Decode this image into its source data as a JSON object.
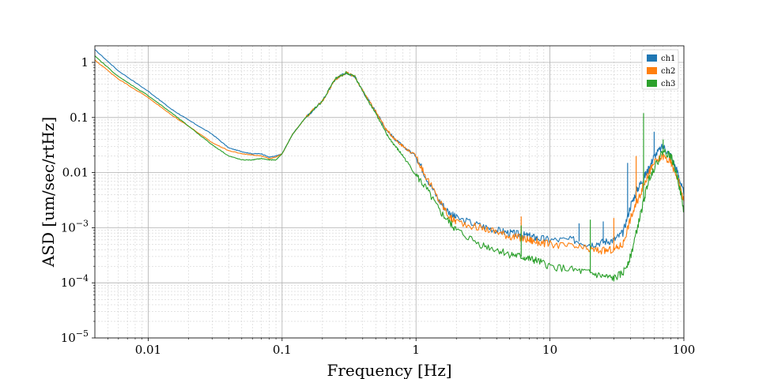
{
  "chart_data": {
    "type": "line",
    "title": "",
    "xlabel": "Frequency [Hz]",
    "ylabel": "ASD [um/sec/rtHz]",
    "xscale": "log",
    "yscale": "log",
    "xlim": [
      0.004,
      100
    ],
    "ylim": [
      1e-05,
      2
    ],
    "grid": true,
    "legend_position": "top-right",
    "x_ticks": [
      {
        "value": 0.01,
        "label": "0.01"
      },
      {
        "value": 0.1,
        "label": "0.1"
      },
      {
        "value": 1,
        "label": "1"
      },
      {
        "value": 10,
        "label": "10"
      },
      {
        "value": 100,
        "label": "100"
      }
    ],
    "y_ticks": [
      {
        "value": 1,
        "mant": "1",
        "exp": ""
      },
      {
        "value": 0.1,
        "mant": "0.1",
        "exp": ""
      },
      {
        "value": 0.01,
        "mant": "0.01",
        "exp": ""
      },
      {
        "value": 0.001,
        "mant": "10",
        "exp": "−3"
      },
      {
        "value": 0.0001,
        "mant": "10",
        "exp": "−4"
      },
      {
        "value": 1e-05,
        "mant": "10",
        "exp": "−5"
      }
    ],
    "series": [
      {
        "name": "ch1",
        "color": "#1f77b4",
        "points": [
          [
            0.004,
            1.7
          ],
          [
            0.006,
            0.7
          ],
          [
            0.01,
            0.3
          ],
          [
            0.015,
            0.14
          ],
          [
            0.02,
            0.09
          ],
          [
            0.03,
            0.05
          ],
          [
            0.04,
            0.028
          ],
          [
            0.05,
            0.024
          ],
          [
            0.06,
            0.022
          ],
          [
            0.07,
            0.022
          ],
          [
            0.08,
            0.019
          ],
          [
            0.09,
            0.02
          ],
          [
            0.1,
            0.022
          ],
          [
            0.12,
            0.05
          ],
          [
            0.15,
            0.1
          ],
          [
            0.2,
            0.2
          ],
          [
            0.25,
            0.5
          ],
          [
            0.3,
            0.65
          ],
          [
            0.35,
            0.55
          ],
          [
            0.4,
            0.3
          ],
          [
            0.5,
            0.13
          ],
          [
            0.6,
            0.06
          ],
          [
            0.7,
            0.04
          ],
          [
            0.8,
            0.03
          ],
          [
            1,
            0.02
          ],
          [
            1.2,
            0.008
          ],
          [
            1.5,
            0.003
          ],
          [
            1.8,
            0.0018
          ],
          [
            2,
            0.0015
          ],
          [
            3,
            0.0011
          ],
          [
            4,
            0.0009
          ],
          [
            5,
            0.0008
          ],
          [
            6,
            0.00075
          ],
          [
            7,
            0.0007
          ],
          [
            8,
            0.00065
          ],
          [
            10,
            0.0006
          ],
          [
            15,
            0.0006
          ],
          [
            20,
            0.0005
          ],
          [
            25,
            0.00055
          ],
          [
            30,
            0.0006
          ],
          [
            35,
            0.0008
          ],
          [
            40,
            0.0025
          ],
          [
            45,
            0.005
          ],
          [
            50,
            0.008
          ],
          [
            55,
            0.012
          ],
          [
            60,
            0.02
          ],
          [
            70,
            0.03
          ],
          [
            80,
            0.02
          ],
          [
            90,
            0.01
          ],
          [
            100,
            0.004
          ]
        ]
      },
      {
        "name": "ch2",
        "color": "#ff7f0e",
        "points": [
          [
            0.004,
            1.1
          ],
          [
            0.006,
            0.5
          ],
          [
            0.01,
            0.23
          ],
          [
            0.015,
            0.11
          ],
          [
            0.02,
            0.07
          ],
          [
            0.03,
            0.035
          ],
          [
            0.04,
            0.025
          ],
          [
            0.05,
            0.022
          ],
          [
            0.06,
            0.021
          ],
          [
            0.07,
            0.02
          ],
          [
            0.08,
            0.018
          ],
          [
            0.09,
            0.019
          ],
          [
            0.1,
            0.022
          ],
          [
            0.12,
            0.05
          ],
          [
            0.15,
            0.1
          ],
          [
            0.2,
            0.2
          ],
          [
            0.25,
            0.5
          ],
          [
            0.3,
            0.65
          ],
          [
            0.35,
            0.55
          ],
          [
            0.4,
            0.3
          ],
          [
            0.5,
            0.13
          ],
          [
            0.6,
            0.06
          ],
          [
            0.7,
            0.04
          ],
          [
            0.8,
            0.03
          ],
          [
            1,
            0.02
          ],
          [
            1.2,
            0.008
          ],
          [
            1.5,
            0.003
          ],
          [
            1.8,
            0.0015
          ],
          [
            2,
            0.0013
          ],
          [
            3,
            0.001
          ],
          [
            4,
            0.00085
          ],
          [
            5,
            0.0007
          ],
          [
            6,
            0.00065
          ],
          [
            7,
            0.0006
          ],
          [
            8,
            0.00055
          ],
          [
            10,
            0.0005
          ],
          [
            15,
            0.00045
          ],
          [
            20,
            0.0004
          ],
          [
            25,
            0.00038
          ],
          [
            30,
            0.0004
          ],
          [
            35,
            0.0005
          ],
          [
            40,
            0.0015
          ],
          [
            45,
            0.003
          ],
          [
            50,
            0.006
          ],
          [
            55,
            0.01
          ],
          [
            60,
            0.015
          ],
          [
            70,
            0.02
          ],
          [
            80,
            0.015
          ],
          [
            90,
            0.008
          ],
          [
            100,
            0.003
          ]
        ]
      },
      {
        "name": "ch3",
        "color": "#2ca02c",
        "points": [
          [
            0.004,
            1.3
          ],
          [
            0.006,
            0.55
          ],
          [
            0.01,
            0.25
          ],
          [
            0.015,
            0.12
          ],
          [
            0.02,
            0.07
          ],
          [
            0.03,
            0.032
          ],
          [
            0.04,
            0.02
          ],
          [
            0.05,
            0.017
          ],
          [
            0.06,
            0.017
          ],
          [
            0.07,
            0.018
          ],
          [
            0.08,
            0.017
          ],
          [
            0.09,
            0.017
          ],
          [
            0.1,
            0.022
          ],
          [
            0.12,
            0.05
          ],
          [
            0.15,
            0.1
          ],
          [
            0.2,
            0.2
          ],
          [
            0.25,
            0.5
          ],
          [
            0.3,
            0.65
          ],
          [
            0.35,
            0.55
          ],
          [
            0.4,
            0.3
          ],
          [
            0.5,
            0.12
          ],
          [
            0.6,
            0.05
          ],
          [
            0.7,
            0.03
          ],
          [
            0.8,
            0.02
          ],
          [
            1,
            0.009
          ],
          [
            1.2,
            0.005
          ],
          [
            1.5,
            0.002
          ],
          [
            1.8,
            0.0012
          ],
          [
            2,
            0.0009
          ],
          [
            3,
            0.0005
          ],
          [
            4,
            0.0004
          ],
          [
            5,
            0.00033
          ],
          [
            6,
            0.0003
          ],
          [
            7,
            0.00027
          ],
          [
            8,
            0.00025
          ],
          [
            10,
            0.0002
          ],
          [
            15,
            0.00017
          ],
          [
            20,
            0.00015
          ],
          [
            25,
            0.00013
          ],
          [
            30,
            0.00012
          ],
          [
            35,
            0.00015
          ],
          [
            40,
            0.0003
          ],
          [
            45,
            0.001
          ],
          [
            50,
            0.003
          ],
          [
            55,
            0.008
          ],
          [
            60,
            0.012
          ],
          [
            70,
            0.025
          ],
          [
            80,
            0.02
          ],
          [
            90,
            0.008
          ],
          [
            100,
            0.002
          ]
        ]
      }
    ],
    "spikes": [
      {
        "series": "ch2",
        "x": 6.1,
        "y": 0.0016
      },
      {
        "series": "ch3",
        "x": 6.1,
        "y": 0.0011
      },
      {
        "series": "ch1",
        "x": 16.5,
        "y": 0.0012
      },
      {
        "series": "ch3",
        "x": 20,
        "y": 0.0014
      },
      {
        "series": "ch1",
        "x": 25,
        "y": 0.0013
      },
      {
        "series": "ch2",
        "x": 30,
        "y": 0.0015
      },
      {
        "series": "ch1",
        "x": 38,
        "y": 0.015
      },
      {
        "series": "ch2",
        "x": 44,
        "y": 0.02
      },
      {
        "series": "ch3",
        "x": 50,
        "y": 0.12
      },
      {
        "series": "ch1",
        "x": 60,
        "y": 0.055
      },
      {
        "series": "ch3",
        "x": 70,
        "y": 0.04
      }
    ]
  }
}
